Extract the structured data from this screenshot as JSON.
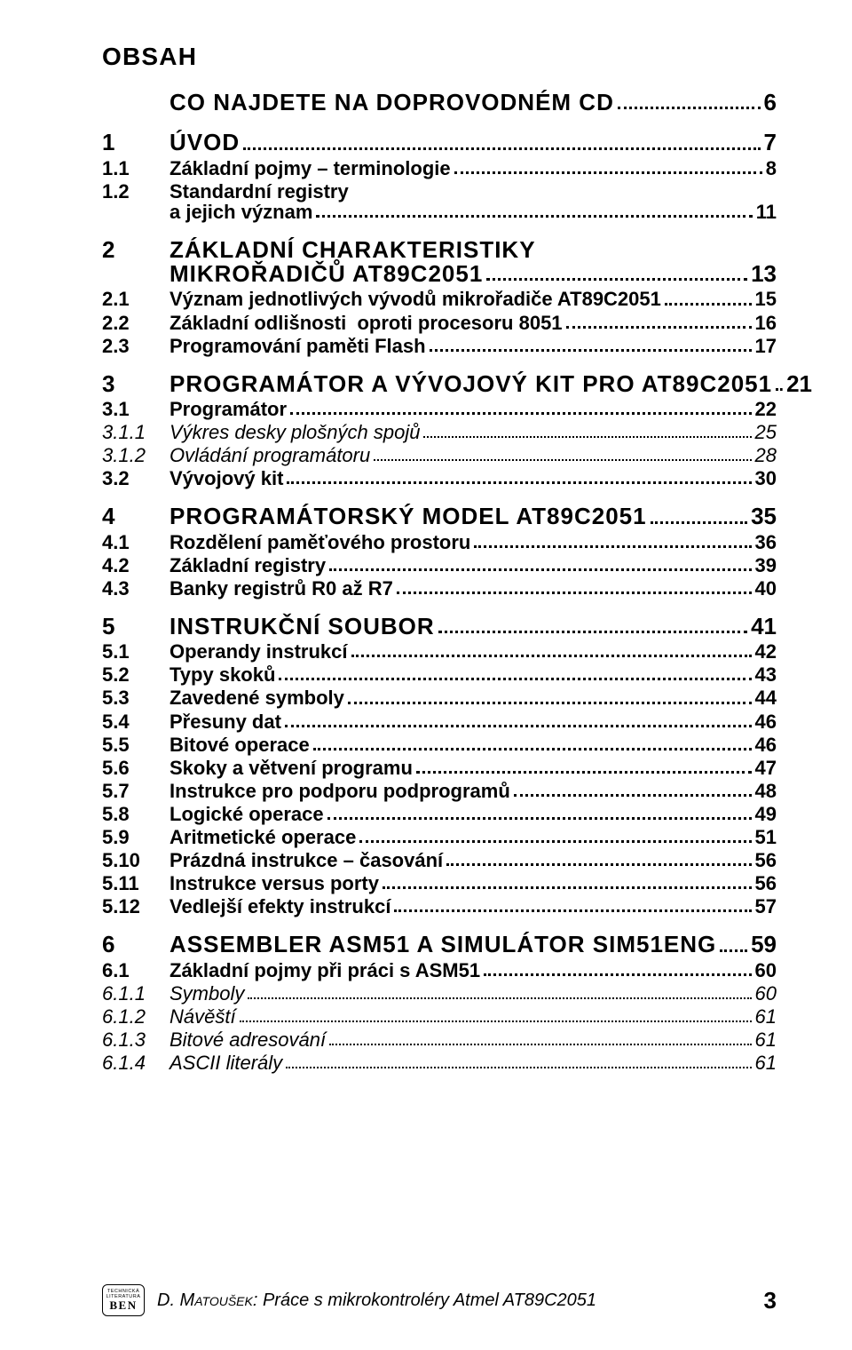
{
  "title": "OBSAH",
  "rows": [
    {
      "level": 1,
      "num": "",
      "text": "CO NAJDETE NA DOPROVODNÉM CD",
      "page": "6",
      "before": 0,
      "after": 18
    },
    {
      "level": 1,
      "num": "1",
      "text": "ÚVOD",
      "page": "7",
      "before": 0,
      "after": 3
    },
    {
      "level": 2,
      "num": "1.1",
      "text": "Základní pojmy – terminologie",
      "page": "8",
      "before": 0,
      "after": 3
    },
    {
      "level": 2,
      "num": "1.2",
      "text": "Standardní registry",
      "page": "",
      "before": 0,
      "after": 0,
      "noleader": true
    },
    {
      "level": 2,
      "num": "",
      "text": "a jejich význam",
      "page": "11",
      "before": 0,
      "after": 18,
      "cont": true
    },
    {
      "level": 1,
      "num": "2",
      "text": "ZÁKLADNÍ CHARAKTERISTIKY",
      "page": "",
      "before": 0,
      "after": 0,
      "noleader": true
    },
    {
      "level": 1,
      "num": "",
      "text": "MIKROŘADIČŮ AT89C2051",
      "page": "13",
      "before": 0,
      "after": 3,
      "cont": true
    },
    {
      "level": 2,
      "num": "2.1",
      "text": "Význam jednotlivých vývodů mikrořadiče AT89C2051",
      "page": "15",
      "before": 0,
      "after": 3
    },
    {
      "level": 2,
      "num": "2.2",
      "text": "Základní odlišnosti  oproti procesoru 8051",
      "page": "16",
      "before": 0,
      "after": 3
    },
    {
      "level": 2,
      "num": "2.3",
      "text": "Programování paměti Flash",
      "page": "17",
      "before": 0,
      "after": 18
    },
    {
      "level": 1,
      "num": "3",
      "text": "PROGRAMÁTOR A VÝVOJOVÝ KIT PRO AT89C2051",
      "page": "21",
      "before": 0,
      "after": 3
    },
    {
      "level": 2,
      "num": "3.1",
      "text": "Programátor",
      "page": "22",
      "before": 0,
      "after": 3
    },
    {
      "level": 3,
      "num": "3.1.1",
      "text": "Výkres desky plošných spojů",
      "page": "25",
      "before": 0,
      "after": 3
    },
    {
      "level": 3,
      "num": "3.1.2",
      "text": "Ovládání programátoru",
      "page": "28",
      "before": 0,
      "after": 3
    },
    {
      "level": 2,
      "num": "3.2",
      "text": "Vývojový kit",
      "page": "30",
      "before": 0,
      "after": 18
    },
    {
      "level": 1,
      "num": "4",
      "text": "PROGRAMÁTORSKÝ MODEL AT89C2051",
      "page": "35",
      "before": 0,
      "after": 3
    },
    {
      "level": 2,
      "num": "4.1",
      "text": "Rozdělení paměťového prostoru",
      "page": "36",
      "before": 0,
      "after": 3
    },
    {
      "level": 2,
      "num": "4.2",
      "text": "Základní registry",
      "page": "39",
      "before": 0,
      "after": 3
    },
    {
      "level": 2,
      "num": "4.3",
      "text": "Banky registrů R0 až R7",
      "page": "40",
      "before": 0,
      "after": 18
    },
    {
      "level": 1,
      "num": "5",
      "text": "INSTRUKČNÍ SOUBOR",
      "page": "41",
      "before": 0,
      "after": 3
    },
    {
      "level": 2,
      "num": "5.1",
      "text": "Operandy instrukcí",
      "page": "42",
      "before": 0,
      "after": 3
    },
    {
      "level": 2,
      "num": "5.2",
      "text": "Typy skoků",
      "page": "43",
      "before": 0,
      "after": 3
    },
    {
      "level": 2,
      "num": "5.3",
      "text": "Zavedené symboly",
      "page": "44",
      "before": 0,
      "after": 3
    },
    {
      "level": 2,
      "num": "5.4",
      "text": "Přesuny dat",
      "page": "46",
      "before": 0,
      "after": 3
    },
    {
      "level": 2,
      "num": "5.5",
      "text": "Bitové operace",
      "page": "46",
      "before": 0,
      "after": 3
    },
    {
      "level": 2,
      "num": "5.6",
      "text": "Skoky a větvení programu",
      "page": "47",
      "before": 0,
      "after": 3
    },
    {
      "level": 2,
      "num": "5.7",
      "text": "Instrukce pro podporu podprogramů",
      "page": "48",
      "before": 0,
      "after": 3
    },
    {
      "level": 2,
      "num": "5.8",
      "text": "Logické operace",
      "page": "49",
      "before": 0,
      "after": 3
    },
    {
      "level": 2,
      "num": "5.9",
      "text": "Aritmetické operace",
      "page": "51",
      "before": 0,
      "after": 3
    },
    {
      "level": 2,
      "num": "5.10",
      "text": "Prázdná instrukce – časování",
      "page": "56",
      "before": 0,
      "after": 3
    },
    {
      "level": 2,
      "num": "5.11",
      "text": "Instrukce versus porty",
      "page": "56",
      "before": 0,
      "after": 3
    },
    {
      "level": 2,
      "num": "5.12",
      "text": "Vedlejší efekty instrukcí",
      "page": "57",
      "before": 0,
      "after": 18
    },
    {
      "level": 1,
      "num": "6",
      "text": "ASSEMBLER ASM51 A SIMULÁTOR SIM51ENG",
      "page": "59",
      "before": 0,
      "after": 3
    },
    {
      "level": 2,
      "num": "6.1",
      "text": "Základní pojmy při práci s ASM51",
      "page": "60",
      "before": 0,
      "after": 3
    },
    {
      "level": 3,
      "num": "6.1.1",
      "text": "Symboly",
      "page": "60",
      "before": 0,
      "after": 3
    },
    {
      "level": 3,
      "num": "6.1.2",
      "text": "Návěští",
      "page": "61",
      "before": 0,
      "after": 3
    },
    {
      "level": 3,
      "num": "6.1.3",
      "text": "Bitové adresování",
      "page": "61",
      "before": 0,
      "after": 3
    },
    {
      "level": 3,
      "num": "6.1.4",
      "text": "ASCII literály",
      "page": "61",
      "before": 0,
      "after": 0
    }
  ],
  "footer": {
    "author_sc": "D. Matoušek",
    "rest": ": Práce s mikrokontroléry Atmel AT89C2051",
    "page": "3",
    "logo_top": "TECHNICKÁ LITERATURA",
    "logo_main": "BEN"
  }
}
